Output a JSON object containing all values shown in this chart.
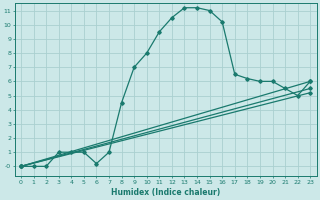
{
  "xlabel": "Humidex (Indice chaleur)",
  "background_color": "#cce8e8",
  "grid_color": "#aad0d0",
  "line_color": "#1a7a6e",
  "xlim": [
    -0.5,
    23.5
  ],
  "ylim": [
    -0.7,
    11.5
  ],
  "xticks": [
    0,
    1,
    2,
    3,
    4,
    5,
    6,
    7,
    8,
    9,
    10,
    11,
    12,
    13,
    14,
    15,
    16,
    17,
    18,
    19,
    20,
    21,
    22,
    23
  ],
  "yticks": [
    0,
    1,
    2,
    3,
    4,
    5,
    6,
    7,
    8,
    9,
    10,
    11
  ],
  "curve1_x": [
    0,
    1,
    2,
    3,
    4,
    5,
    6,
    7,
    8,
    9,
    10,
    11,
    12,
    13,
    14,
    15,
    16,
    17,
    18,
    19,
    20,
    21,
    22,
    23
  ],
  "curve1_y": [
    0,
    0,
    0,
    1,
    1,
    1,
    0.2,
    1,
    4.5,
    7,
    8,
    9.5,
    10.5,
    11.2,
    11.2,
    11.0,
    10.2,
    6.5,
    6.2,
    6.0,
    6.0,
    5.5,
    5.0,
    6.0
  ],
  "curve2_x": [
    0,
    23
  ],
  "curve2_y": [
    0,
    6.0
  ],
  "curve3_x": [
    0,
    23
  ],
  "curve3_y": [
    0,
    5.5
  ],
  "curve4_x": [
    0,
    23
  ],
  "curve4_y": [
    0,
    5.2
  ]
}
